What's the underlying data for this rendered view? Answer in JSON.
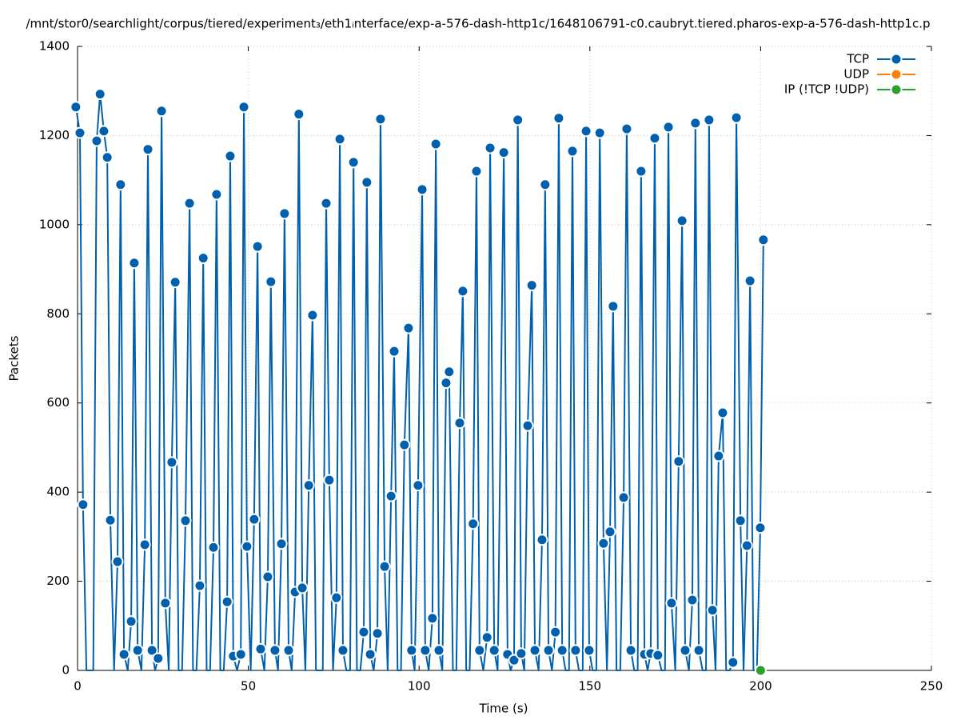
{
  "chart_data": {
    "type": "line",
    "title": "/mnt/stor0/searchlight/corpus/tiered/experiment₃/eth1ᵢnterface/exp-a-576-dash-http1c/1648106791-c0.caubryt.tiered.pharos-exp-a-576-dash-http1c.p",
    "x_label": "Time (s)",
    "y_label": "Packets",
    "xlim": [
      0,
      250
    ],
    "ylim": [
      0,
      1400
    ],
    "xticks": [
      0,
      50,
      100,
      150,
      200,
      250
    ],
    "yticks": [
      0,
      200,
      400,
      600,
      800,
      1000,
      1200,
      1400
    ],
    "grid": true,
    "legend": "top-right",
    "series": [
      {
        "name": "TCP",
        "color": "#0060ad",
        "x": [
          -0.5,
          0.7,
          1.6,
          2.6,
          4.6,
          5.6,
          6.6,
          7.7,
          8.7,
          9.6,
          10.7,
          11.7,
          12.6,
          13.6,
          14.7,
          15.7,
          16.6,
          17.6,
          18.7,
          19.7,
          20.6,
          21.8,
          22.7,
          23.6,
          24.6,
          25.7,
          26.7,
          27.6,
          28.6,
          29.6,
          30.6,
          31.6,
          32.8,
          33.8,
          34.8,
          35.8,
          36.8,
          37.8,
          38.8,
          39.8,
          40.7,
          41.8,
          42.8,
          43.8,
          44.7,
          45.6,
          46.7,
          47.8,
          48.7,
          49.6,
          50.7,
          51.7,
          52.7,
          53.6,
          54.7,
          55.7,
          56.6,
          57.8,
          58.7,
          59.7,
          60.6,
          61.8,
          62.7,
          63.7,
          64.8,
          65.8,
          66.7,
          67.7,
          68.8,
          69.8,
          71.8,
          72.8,
          73.7,
          74.8,
          75.8,
          76.8,
          77.7,
          78.7,
          79.8,
          80.8,
          81.8,
          82.8,
          83.8,
          84.7,
          85.7,
          86.7,
          87.8,
          88.7,
          89.9,
          90.8,
          91.8,
          92.7,
          93.7,
          94.7,
          95.7,
          96.9,
          97.8,
          98.7,
          99.7,
          100.9,
          101.8,
          102.8,
          103.9,
          104.9,
          105.8,
          106.8,
          107.9,
          108.8,
          109.9,
          110.9,
          111.9,
          112.8,
          113.8,
          114.8,
          115.8,
          116.8,
          117.7,
          118.8,
          119.9,
          120.8,
          122.0,
          123.0,
          124.8,
          125.9,
          126.8,
          127.8,
          128.9,
          129.9,
          130.8,
          131.8,
          133.0,
          133.9,
          135.0,
          136.0,
          136.9,
          137.9,
          138.9,
          139.9,
          140.9,
          141.9,
          142.9,
          143.9,
          144.9,
          145.8,
          146.8,
          147.9,
          148.9,
          149.8,
          150.8,
          151.9,
          152.9,
          154.0,
          155.0,
          155.9,
          156.8,
          157.8,
          158.9,
          159.9,
          160.8,
          162.0,
          163.0,
          164.0,
          165.0,
          166.0,
          166.9,
          167.8,
          169.0,
          169.9,
          171.0,
          172.0,
          173.0,
          173.9,
          175.0,
          176.0,
          177.0,
          177.9,
          179.0,
          180.0,
          180.9,
          181.9,
          183.0,
          184.0,
          184.9,
          185.9,
          186.8,
          187.7,
          188.9,
          189.9,
          190.9,
          191.9,
          192.9,
          194.1,
          195.0,
          196.0,
          196.9,
          197.9,
          198.9,
          199.9,
          200.8
        ],
        "values": [
          1264,
          1206,
          372,
          0,
          0,
          1188,
          1293,
          1210,
          1151,
          337,
          0,
          244,
          1090,
          36,
          0,
          110,
          914,
          45,
          0,
          282,
          1169,
          45,
          0,
          27,
          1255,
          151,
          0,
          467,
          871,
          0,
          0,
          336,
          1048,
          0,
          0,
          190,
          925,
          0,
          0,
          276,
          1068,
          0,
          0,
          154,
          1154,
          32,
          0,
          36,
          1264,
          278,
          0,
          339,
          951,
          48,
          0,
          210,
          872,
          45,
          0,
          284,
          1025,
          45,
          0,
          176,
          1248,
          185,
          0,
          415,
          797,
          0,
          0,
          1048,
          427,
          0,
          163,
          1192,
          45,
          0,
          0,
          1140,
          0,
          0,
          86,
          1095,
          36,
          0,
          83,
          1237,
          233,
          0,
          391,
          716,
          0,
          0,
          506,
          768,
          45,
          0,
          415,
          1079,
          45,
          0,
          117,
          1181,
          45,
          0,
          645,
          670,
          0,
          0,
          555,
          851,
          0,
          0,
          329,
          1120,
          45,
          0,
          74,
          1172,
          45,
          0,
          1162,
          36,
          0,
          23,
          1235,
          38,
          0,
          549,
          864,
          45,
          0,
          293,
          1090,
          45,
          0,
          86,
          1239,
          45,
          0,
          0,
          1165,
          45,
          0,
          0,
          1210,
          45,
          0,
          0,
          1206,
          285,
          0,
          311,
          817,
          0,
          0,
          388,
          1215,
          45,
          0,
          0,
          1120,
          36,
          0,
          38,
          1194,
          34,
          0,
          0,
          1219,
          151,
          0,
          469,
          1009,
          45,
          0,
          158,
          1228,
          45,
          0,
          0,
          1235,
          135,
          0,
          481,
          578,
          0,
          0,
          18,
          1240,
          336,
          0,
          280,
          874,
          0,
          0,
          320,
          966
        ]
      },
      {
        "name": "UDP",
        "color": "#ff7f0e",
        "x": [],
        "values": []
      },
      {
        "name": "IP (!TCP  !UDP)",
        "color": "#2ca02c",
        "x": [
          200
        ],
        "values": [
          0
        ]
      }
    ]
  }
}
